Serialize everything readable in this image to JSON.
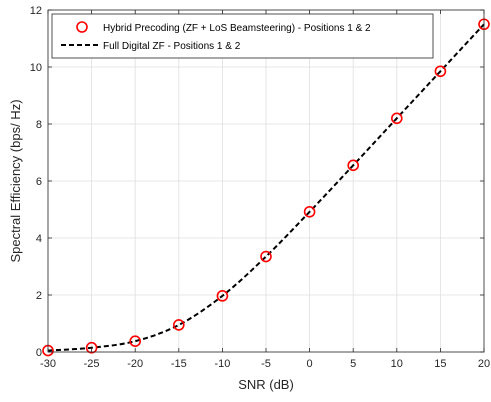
{
  "chart_data": {
    "type": "line",
    "title": "",
    "xlabel": "SNR (dB)",
    "ylabel": "Spectral Efficiency (bps/ Hz)",
    "xlim": [
      -30,
      20
    ],
    "ylim": [
      0,
      12
    ],
    "xticks": [
      "-30",
      "-25",
      "-20",
      "-15",
      "-10",
      "-5",
      "0",
      "5",
      "10",
      "15",
      "20"
    ],
    "yticks": [
      "0",
      "2",
      "4",
      "6",
      "8",
      "10",
      "12"
    ],
    "grid": true,
    "legend_position": "top-left",
    "series": [
      {
        "name": "Hybrid Precoding (ZF + LoS Beamsteering) - Positions 1 & 2",
        "marker": "circle",
        "line": "none",
        "color": "#ff0000",
        "x": [
          -30,
          -25,
          -20,
          -15,
          -10,
          -5,
          0,
          5,
          10,
          15,
          20
        ],
        "y": [
          0.05,
          0.15,
          0.38,
          0.95,
          1.97,
          3.35,
          4.92,
          6.55,
          8.2,
          9.85,
          11.5
        ]
      },
      {
        "name": "Full Digital ZF - Positions 1 & 2",
        "marker": "none",
        "line": "dashed",
        "color": "#000000",
        "x": [
          -30,
          -25,
          -20,
          -15,
          -10,
          -5,
          0,
          5,
          10,
          15,
          20
        ],
        "y": [
          0.05,
          0.15,
          0.38,
          0.95,
          1.97,
          3.35,
          4.92,
          6.55,
          8.2,
          9.85,
          11.5
        ]
      }
    ]
  }
}
